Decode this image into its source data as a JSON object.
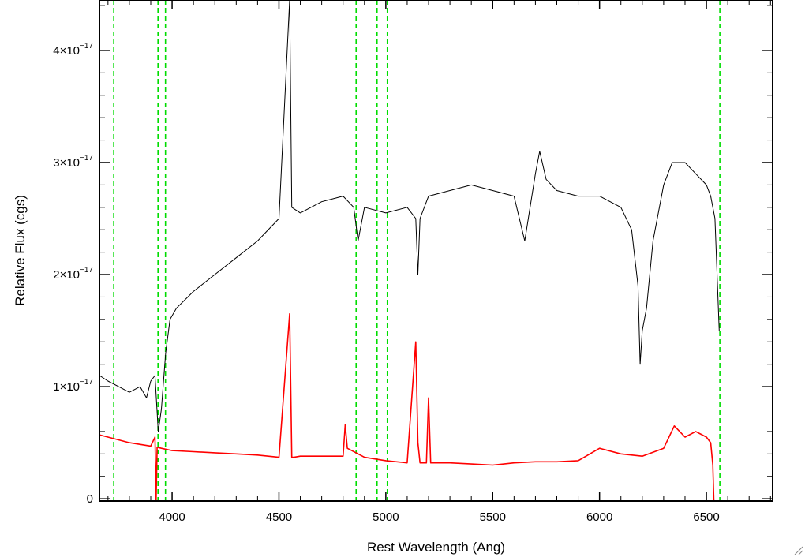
{
  "chart_data": {
    "type": "line",
    "title": "",
    "xlabel": "Rest Wavelength (Ang)",
    "ylabel": "Relative Flux (cgs)",
    "xlim": [
      3660,
      6810
    ],
    "ylim": [
      -2e-19,
      4.45e-17
    ],
    "x_ticks": [
      {
        "value": 4000,
        "label": "4000"
      },
      {
        "value": 4500,
        "label": "4500"
      },
      {
        "value": 5000,
        "label": "5000"
      },
      {
        "value": 5500,
        "label": "5500"
      },
      {
        "value": 6000,
        "label": "6000"
      },
      {
        "value": 6500,
        "label": "6500"
      }
    ],
    "y_ticks": [
      {
        "value": 0,
        "base": "0",
        "exp": ""
      },
      {
        "value": 1e-17,
        "base": "1×10",
        "exp": "−17"
      },
      {
        "value": 2e-17,
        "base": "2×10",
        "exp": "−17"
      },
      {
        "value": 3e-17,
        "base": "3×10",
        "exp": "−17"
      },
      {
        "value": 4e-17,
        "base": "4×10",
        "exp": "−17"
      }
    ],
    "grid": false,
    "vlines": [
      3727,
      3934,
      3969,
      4861,
      4959,
      5007,
      6563
    ],
    "series": [
      {
        "color": "#000000",
        "style": "solid",
        "x": [
          3660,
          3700,
          3750,
          3800,
          3850,
          3880,
          3900,
          3920,
          3935,
          3950,
          3970,
          3990,
          4020,
          4100,
          4200,
          4300,
          4400,
          4500,
          4550,
          4560,
          4600,
          4700,
          4800,
          4850,
          4870,
          4900,
          5000,
          5100,
          5140,
          5150,
          5160,
          5200,
          5300,
          5400,
          5500,
          5600,
          5650,
          5700,
          5720,
          5750,
          5800,
          5900,
          6000,
          6100,
          6150,
          6180,
          6190,
          6200,
          6220,
          6250,
          6300,
          6340,
          6400,
          6450,
          6500,
          6520,
          6540,
          6560
        ],
        "y": [
          1.1e-17,
          1.05e-17,
          1e-17,
          9.5e-18,
          1e-17,
          9e-18,
          1.05e-17,
          1.1e-17,
          6e-18,
          8e-18,
          1.3e-17,
          1.6e-17,
          1.7e-17,
          1.85e-17,
          2e-17,
          2.15e-17,
          2.3e-17,
          2.5e-17,
          4.45e-17,
          2.6e-17,
          2.55e-17,
          2.65e-17,
          2.7e-17,
          2.6e-17,
          2.3e-17,
          2.6e-17,
          2.55e-17,
          2.6e-17,
          2.5e-17,
          2e-17,
          2.5e-17,
          2.7e-17,
          2.75e-17,
          2.8e-17,
          2.75e-17,
          2.7e-17,
          2.3e-17,
          2.9e-17,
          3.1e-17,
          2.85e-17,
          2.75e-17,
          2.7e-17,
          2.7e-17,
          2.6e-17,
          2.4e-17,
          1.9e-17,
          1.2e-17,
          1.5e-17,
          1.7e-17,
          2.3e-17,
          2.8e-17,
          3e-17,
          3e-17,
          2.9e-17,
          2.8e-17,
          2.7e-17,
          2.5e-17,
          1.5e-17
        ]
      },
      {
        "color": "#ff0000",
        "style": "solid",
        "x": [
          3660,
          3700,
          3800,
          3900,
          3920,
          3925,
          3930,
          3950,
          4000,
          4100,
          4200,
          4300,
          4400,
          4500,
          4550,
          4555,
          4560,
          4570,
          4600,
          4700,
          4800,
          4810,
          4820,
          4900,
          5000,
          5100,
          5140,
          5150,
          5160,
          5190,
          5200,
          5210,
          5300,
          5400,
          5500,
          5600,
          5700,
          5800,
          5900,
          6000,
          6100,
          6200,
          6300,
          6350,
          6400,
          6450,
          6500,
          6520,
          6530,
          6535,
          6560,
          6600,
          6700,
          6810
        ],
        "y": [
          5.7e-18,
          5.5e-18,
          5e-18,
          4.7e-18,
          5.5e-18,
          -2e-19,
          4.6e-18,
          4.5e-18,
          4.3e-18,
          4.2e-18,
          4.1e-18,
          4e-18,
          3.9e-18,
          3.7e-18,
          1.65e-17,
          1e-17,
          3.7e-18,
          3.7e-18,
          3.8e-18,
          3.8e-18,
          3.8e-18,
          6.6e-18,
          4.5e-18,
          3.7e-18,
          3.4e-18,
          3.2e-18,
          1.4e-17,
          5e-18,
          3.2e-18,
          3.2e-18,
          9e-18,
          3.2e-18,
          3.2e-18,
          3.1e-18,
          3e-18,
          3.2e-18,
          3.3e-18,
          3.3e-18,
          3.4e-18,
          4.5e-18,
          4e-18,
          3.8e-18,
          4.5e-18,
          6.5e-18,
          5.5e-18,
          6e-18,
          5.5e-18,
          5e-18,
          3e-18,
          -2e-19,
          -2e-19,
          -2e-19,
          -2e-19,
          -2e-19
        ]
      }
    ]
  }
}
